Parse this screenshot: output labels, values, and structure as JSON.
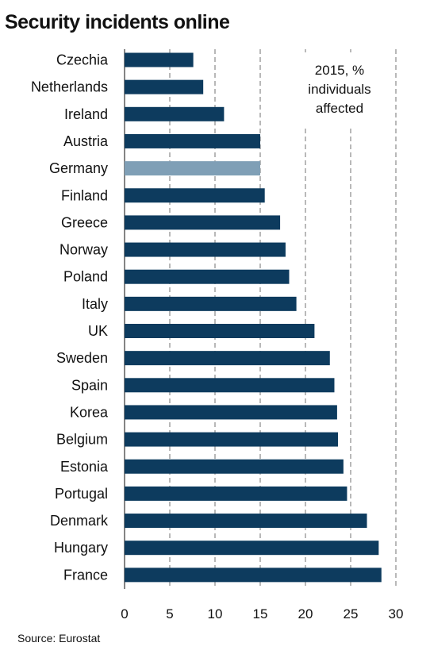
{
  "title": "Security incidents online",
  "source": "Source: Eurostat",
  "colors": {
    "bar": "#0d3b5e",
    "highlight": "#7f9fb6",
    "grid": "#8a8a8a"
  },
  "chart_data": {
    "type": "bar",
    "orientation": "horizontal",
    "annotation": [
      "2015, %",
      "individuals",
      "affected"
    ],
    "categories": [
      "Czechia",
      "Netherlands",
      "Ireland",
      "Austria",
      "Germany",
      "Finland",
      "Greece",
      "Norway",
      "Poland",
      "Italy",
      "UK",
      "Sweden",
      "Spain",
      "Korea",
      "Belgium",
      "Estonia",
      "Portugal",
      "Denmark",
      "Hungary",
      "France"
    ],
    "values": [
      7.6,
      8.7,
      11.0,
      15.0,
      15.0,
      15.5,
      17.2,
      17.8,
      18.2,
      19.0,
      21.0,
      22.7,
      23.2,
      23.5,
      23.6,
      24.2,
      24.6,
      26.8,
      28.1,
      28.4
    ],
    "highlight": [
      "Germany"
    ],
    "xlim": [
      0,
      30
    ],
    "xticks": [
      "0",
      "5",
      "10",
      "15",
      "20",
      "25",
      "30"
    ],
    "grid": "vertical dashed"
  }
}
